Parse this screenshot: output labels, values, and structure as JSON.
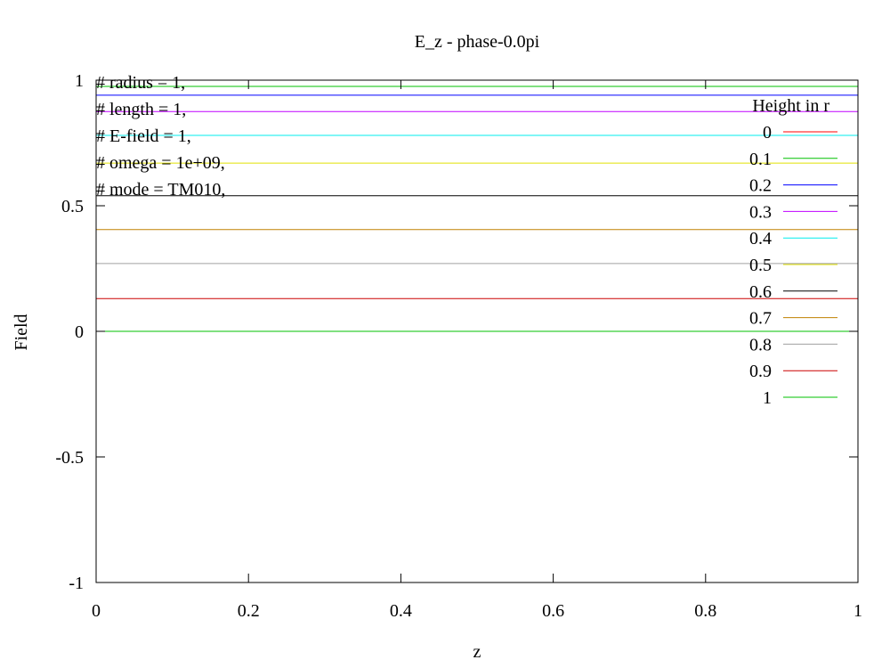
{
  "chart_data": {
    "type": "line",
    "title": "E_z - phase-0.0pi",
    "xlabel": "z",
    "ylabel": "Field",
    "xlim": [
      0,
      1
    ],
    "ylim": [
      -1,
      1
    ],
    "x_ticks": [
      0,
      0.2,
      0.4,
      0.6,
      0.8,
      1
    ],
    "x_tick_labels": [
      "0",
      "0.2",
      "0.4",
      "0.6",
      "0.8",
      "1"
    ],
    "y_ticks": [
      -1,
      -0.5,
      0,
      0.5,
      1
    ],
    "y_tick_labels": [
      "-1",
      "-0.5",
      "0",
      "0.5",
      "1"
    ],
    "grid": false,
    "legend_title": "Height in r",
    "legend_position": "top-right",
    "annotations": [
      "# radius = 1,",
      "# length = 1,",
      "# E-field = 1,",
      "# omega = 1e+09,",
      "# mode = TM010,"
    ],
    "x": [
      0,
      1
    ],
    "series": [
      {
        "name": "0",
        "color": "#ff0000",
        "values": [
          1.0,
          1.0
        ]
      },
      {
        "name": "0.1",
        "color": "#00c000",
        "values": [
          0.975,
          0.975
        ]
      },
      {
        "name": "0.2",
        "color": "#0000ff",
        "values": [
          0.94,
          0.94
        ]
      },
      {
        "name": "0.3",
        "color": "#c000ff",
        "values": [
          0.875,
          0.875
        ]
      },
      {
        "name": "0.4",
        "color": "#00eeee",
        "values": [
          0.78,
          0.78
        ]
      },
      {
        "name": "0.5",
        "color": "#e0e000",
        "values": [
          0.67,
          0.67
        ]
      },
      {
        "name": "0.6",
        "color": "#000000",
        "values": [
          0.54,
          0.54
        ]
      },
      {
        "name": "0.7",
        "color": "#c08000",
        "values": [
          0.405,
          0.405
        ]
      },
      {
        "name": "0.8",
        "color": "#a0a0a0",
        "values": [
          0.27,
          0.27
        ]
      },
      {
        "name": "0.9",
        "color": "#cc0000",
        "values": [
          0.13,
          0.13
        ]
      },
      {
        "name": "1",
        "color": "#00c000",
        "values": [
          0.0,
          0.0
        ]
      }
    ]
  }
}
